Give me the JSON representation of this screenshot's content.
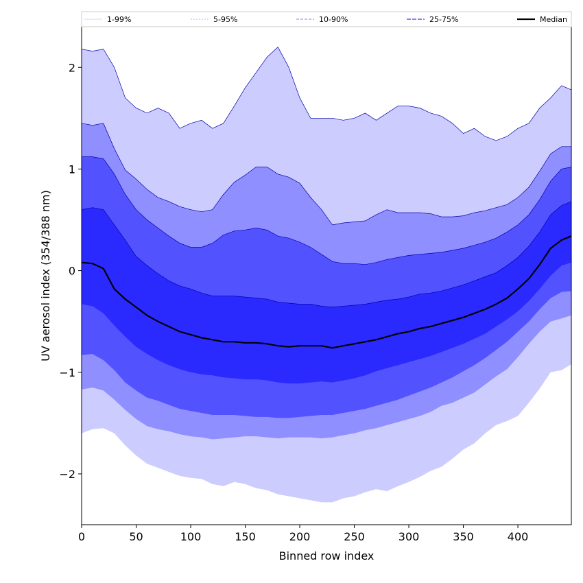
{
  "chart_data": {
    "type": "area",
    "xlabel": "Binned row index",
    "ylabel": "UV aerosol index (354/388 nm)",
    "xlim": [
      0,
      449
    ],
    "ylim": [
      -2.5,
      2.4
    ],
    "xticks": [
      0,
      50,
      100,
      150,
      200,
      250,
      300,
      350,
      400
    ],
    "yticks": [
      -2,
      -1,
      0,
      1,
      2
    ],
    "ytick_labels": [
      "−2",
      "−1",
      "0",
      "1",
      "2"
    ],
    "grid": false,
    "legend_position": "top (horizontal strip)",
    "legend": [
      "1-99%",
      "5-95%",
      "10-90%",
      "25-75%",
      "Median"
    ],
    "colors": {
      "band_1_99": "#ccccff",
      "band_5_95": "#8f8fff",
      "band_10_90": "#5252ff",
      "band_25_75": "#2a2aff",
      "median": "#000000",
      "upper_edge": "#0000aa"
    },
    "x": [
      0,
      10,
      20,
      30,
      40,
      50,
      60,
      70,
      80,
      90,
      100,
      110,
      120,
      130,
      140,
      150,
      160,
      170,
      180,
      190,
      200,
      210,
      220,
      230,
      240,
      250,
      260,
      270,
      280,
      290,
      300,
      310,
      320,
      330,
      340,
      350,
      360,
      370,
      380,
      390,
      400,
      410,
      420,
      430,
      440,
      449
    ],
    "series": [
      {
        "name": "1-99%",
        "lower": [
          -1.6,
          -1.56,
          -1.55,
          -1.6,
          -1.72,
          -1.82,
          -1.9,
          -1.94,
          -1.98,
          -2.02,
          -2.04,
          -2.05,
          -2.1,
          -2.12,
          -2.08,
          -2.1,
          -2.14,
          -2.16,
          -2.2,
          -2.22,
          -2.24,
          -2.26,
          -2.28,
          -2.28,
          -2.24,
          -2.22,
          -2.18,
          -2.15,
          -2.17,
          -2.12,
          -2.08,
          -2.03,
          -1.97,
          -1.93,
          -1.85,
          -1.76,
          -1.7,
          -1.6,
          -1.52,
          -1.48,
          -1.43,
          -1.3,
          -1.16,
          -1.0,
          -0.98,
          -0.92
        ],
        "upper": [
          2.18,
          2.16,
          2.18,
          2.0,
          1.7,
          1.6,
          1.55,
          1.6,
          1.55,
          1.4,
          1.45,
          1.48,
          1.4,
          1.45,
          1.62,
          1.8,
          1.95,
          2.1,
          2.2,
          2.0,
          1.7,
          1.5,
          1.5,
          1.5,
          1.48,
          1.5,
          1.55,
          1.48,
          1.55,
          1.62,
          1.62,
          1.6,
          1.55,
          1.52,
          1.45,
          1.35,
          1.4,
          1.32,
          1.28,
          1.32,
          1.4,
          1.45,
          1.6,
          1.7,
          1.82,
          1.78
        ]
      },
      {
        "name": "5-95%",
        "lower": [
          -1.17,
          -1.15,
          -1.18,
          -1.27,
          -1.37,
          -1.46,
          -1.53,
          -1.56,
          -1.58,
          -1.61,
          -1.63,
          -1.64,
          -1.66,
          -1.65,
          -1.64,
          -1.63,
          -1.63,
          -1.64,
          -1.65,
          -1.64,
          -1.64,
          -1.64,
          -1.65,
          -1.64,
          -1.62,
          -1.6,
          -1.57,
          -1.55,
          -1.52,
          -1.49,
          -1.46,
          -1.43,
          -1.39,
          -1.33,
          -1.3,
          -1.25,
          -1.2,
          -1.12,
          -1.04,
          -0.97,
          -0.85,
          -0.72,
          -0.6,
          -0.5,
          -0.47,
          -0.44
        ],
        "upper": [
          1.45,
          1.43,
          1.45,
          1.2,
          0.99,
          0.9,
          0.8,
          0.72,
          0.68,
          0.63,
          0.6,
          0.58,
          0.6,
          0.75,
          0.87,
          0.94,
          1.02,
          1.02,
          0.95,
          0.92,
          0.86,
          0.72,
          0.6,
          0.45,
          0.47,
          0.48,
          0.49,
          0.55,
          0.6,
          0.57,
          0.57,
          0.57,
          0.56,
          0.53,
          0.53,
          0.54,
          0.57,
          0.59,
          0.62,
          0.65,
          0.72,
          0.82,
          0.98,
          1.15,
          1.22,
          1.22
        ]
      },
      {
        "name": "10-90%",
        "lower": [
          -0.83,
          -0.82,
          -0.88,
          -0.98,
          -1.1,
          -1.18,
          -1.25,
          -1.28,
          -1.32,
          -1.36,
          -1.38,
          -1.4,
          -1.42,
          -1.42,
          -1.42,
          -1.43,
          -1.44,
          -1.44,
          -1.45,
          -1.45,
          -1.44,
          -1.43,
          -1.42,
          -1.42,
          -1.4,
          -1.38,
          -1.36,
          -1.33,
          -1.3,
          -1.27,
          -1.23,
          -1.19,
          -1.15,
          -1.1,
          -1.05,
          -0.99,
          -0.93,
          -0.86,
          -0.78,
          -0.7,
          -0.6,
          -0.5,
          -0.38,
          -0.27,
          -0.21,
          -0.2
        ],
        "upper": [
          1.12,
          1.12,
          1.1,
          0.95,
          0.75,
          0.6,
          0.5,
          0.42,
          0.34,
          0.27,
          0.23,
          0.23,
          0.27,
          0.35,
          0.39,
          0.4,
          0.42,
          0.4,
          0.34,
          0.32,
          0.28,
          0.23,
          0.16,
          0.09,
          0.07,
          0.07,
          0.06,
          0.08,
          0.11,
          0.13,
          0.15,
          0.16,
          0.17,
          0.18,
          0.2,
          0.22,
          0.25,
          0.28,
          0.32,
          0.38,
          0.45,
          0.55,
          0.7,
          0.88,
          1.0,
          1.02
        ]
      },
      {
        "name": "25-75%",
        "lower": [
          -0.33,
          -0.35,
          -0.42,
          -0.54,
          -0.65,
          -0.75,
          -0.82,
          -0.88,
          -0.93,
          -0.97,
          -1.0,
          -1.02,
          -1.03,
          -1.05,
          -1.06,
          -1.07,
          -1.07,
          -1.08,
          -1.1,
          -1.11,
          -1.11,
          -1.1,
          -1.09,
          -1.1,
          -1.08,
          -1.06,
          -1.03,
          -0.99,
          -0.96,
          -0.93,
          -0.9,
          -0.87,
          -0.84,
          -0.8,
          -0.76,
          -0.72,
          -0.67,
          -0.62,
          -0.55,
          -0.48,
          -0.4,
          -0.3,
          -0.18,
          -0.05,
          0.05,
          0.08
        ],
        "upper": [
          0.6,
          0.62,
          0.6,
          0.45,
          0.3,
          0.14,
          0.05,
          -0.03,
          -0.1,
          -0.15,
          -0.18,
          -0.22,
          -0.25,
          -0.25,
          -0.25,
          -0.26,
          -0.27,
          -0.28,
          -0.31,
          -0.32,
          -0.33,
          -0.33,
          -0.35,
          -0.36,
          -0.35,
          -0.34,
          -0.33,
          -0.31,
          -0.29,
          -0.28,
          -0.26,
          -0.23,
          -0.22,
          -0.2,
          -0.17,
          -0.14,
          -0.1,
          -0.06,
          -0.02,
          0.05,
          0.13,
          0.24,
          0.38,
          0.55,
          0.64,
          0.68
        ]
      },
      {
        "name": "Median",
        "values": [
          0.08,
          0.07,
          0.02,
          -0.18,
          -0.28,
          -0.36,
          -0.44,
          -0.5,
          -0.55,
          -0.6,
          -0.63,
          -0.66,
          -0.68,
          -0.7,
          -0.7,
          -0.71,
          -0.71,
          -0.72,
          -0.74,
          -0.75,
          -0.74,
          -0.74,
          -0.74,
          -0.76,
          -0.74,
          -0.72,
          -0.7,
          -0.68,
          -0.65,
          -0.62,
          -0.6,
          -0.57,
          -0.55,
          -0.52,
          -0.49,
          -0.46,
          -0.42,
          -0.38,
          -0.33,
          -0.27,
          -0.18,
          -0.08,
          0.06,
          0.22,
          0.3,
          0.34
        ]
      }
    ]
  }
}
